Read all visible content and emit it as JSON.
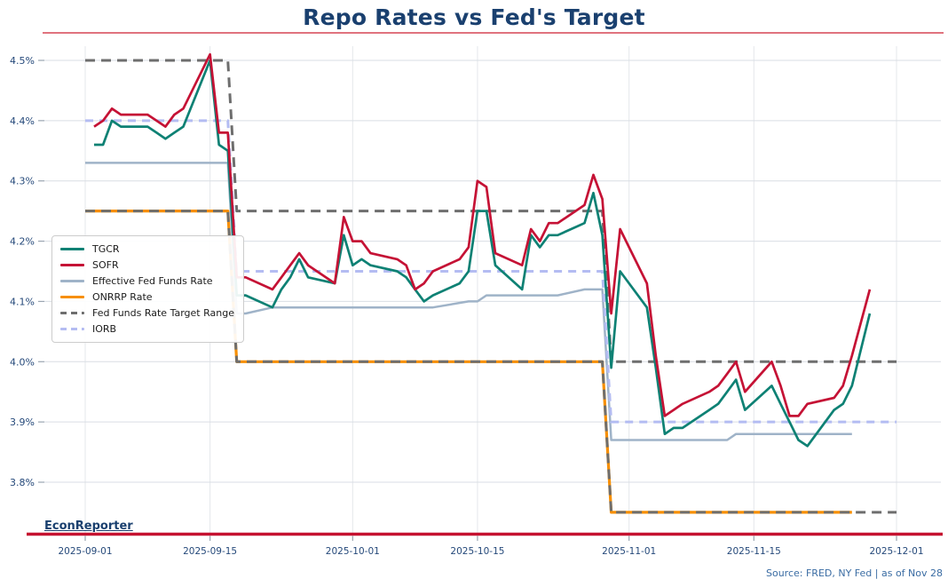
{
  "title": "Repo Rates vs Fed's Target",
  "watermark": "EconReporter",
  "source_note": "Source: FRED, NY Fed | as of Nov 28",
  "colors": {
    "title": "#1a406f",
    "title_rule": "#e0737e",
    "axis_line": "#c51230",
    "tick_label": "#25497a",
    "grid_h": "#d9dee4",
    "grid_v": "#e4e7eb",
    "tick_mark": "#9aa5b1",
    "tgcr": "#0e8174",
    "sofr": "#c51235",
    "effr": "#9fb3c8",
    "onrrp": "#f78f00",
    "target_range": "#6e6e6e",
    "iorb": "#b4bcf2"
  },
  "chart_data": {
    "type": "line",
    "title": "Repo Rates vs Fed's Target",
    "xlabel": "",
    "ylabel": "",
    "grid": true,
    "legend_position": "center-left",
    "x_axis": {
      "ticks": [
        "2025-09-01",
        "2025-09-15",
        "2025-10-01",
        "2025-10-15",
        "2025-11-01",
        "2025-11-15",
        "2025-12-01"
      ],
      "range": [
        "2025-08-27",
        "2025-12-06"
      ]
    },
    "y_axis": {
      "ticks": [
        {
          "value": 4.5,
          "label": "4.5%"
        },
        {
          "value": 4.4,
          "label": "4.4%"
        },
        {
          "value": 4.3,
          "label": "4.3%"
        },
        {
          "value": 4.2,
          "label": "4.2%"
        },
        {
          "value": 4.1,
          "label": "4.1%"
        },
        {
          "value": 4.0,
          "label": "4.0%"
        },
        {
          "value": 3.9,
          "label": "3.9%"
        },
        {
          "value": 3.8,
          "label": "3.8%"
        }
      ],
      "range": [
        3.71,
        4.53
      ]
    },
    "legend": [
      {
        "label": "TGCR",
        "color": "#0e8174",
        "dash": false
      },
      {
        "label": "SOFR",
        "color": "#c51235",
        "dash": false
      },
      {
        "label": "Effective Fed Funds Rate",
        "color": "#9fb3c8",
        "dash": false
      },
      {
        "label": "ONRRP Rate",
        "color": "#f78f00",
        "dash": false
      },
      {
        "label": "Fed Funds Rate Target Range",
        "color": "#6e6e6e",
        "dash": true
      },
      {
        "label": "IORB",
        "color": "#b4bcf2",
        "dash": true
      }
    ],
    "series": [
      {
        "name": "Effective Fed Funds Rate",
        "color": "#9fb3c8",
        "width": 2.5,
        "dash": null,
        "points": [
          [
            "2025-09-01",
            4.33
          ],
          [
            "2025-09-17",
            4.33
          ],
          [
            "2025-09-18",
            4.08
          ],
          [
            "2025-09-19",
            4.08
          ],
          [
            "2025-09-22",
            4.09
          ],
          [
            "2025-10-10",
            4.09
          ],
          [
            "2025-10-14",
            4.1
          ],
          [
            "2025-10-15",
            4.1
          ],
          [
            "2025-10-16",
            4.11
          ],
          [
            "2025-10-24",
            4.11
          ],
          [
            "2025-10-27",
            4.12
          ],
          [
            "2025-10-29",
            4.12
          ],
          [
            "2025-10-30",
            3.87
          ],
          [
            "2025-11-12",
            3.87
          ],
          [
            "2025-11-13",
            3.88
          ],
          [
            "2025-11-26",
            3.88
          ]
        ]
      },
      {
        "name": "ONRRP Rate",
        "color": "#f78f00",
        "width": 3.2,
        "dash": null,
        "points": [
          [
            "2025-09-01",
            4.25
          ],
          [
            "2025-09-17",
            4.25
          ],
          [
            "2025-09-18",
            4.0
          ],
          [
            "2025-10-29",
            4.0
          ],
          [
            "2025-10-30",
            3.75
          ],
          [
            "2025-11-26",
            3.75
          ]
        ]
      },
      {
        "name": "Fed Funds Target Upper",
        "color": "#6e6e6e",
        "width": 3,
        "dash": "11 7",
        "points": [
          [
            "2025-09-01",
            4.5
          ],
          [
            "2025-09-17",
            4.5
          ],
          [
            "2025-09-18",
            4.25
          ],
          [
            "2025-10-29",
            4.25
          ],
          [
            "2025-10-30",
            4.0
          ],
          [
            "2025-12-01",
            4.0
          ]
        ]
      },
      {
        "name": "Fed Funds Target Lower",
        "color": "#6e6e6e",
        "width": 3,
        "dash": "11 7",
        "points": [
          [
            "2025-09-01",
            4.25
          ],
          [
            "2025-09-17",
            4.25
          ],
          [
            "2025-09-18",
            4.0
          ],
          [
            "2025-10-29",
            4.0
          ],
          [
            "2025-10-30",
            3.75
          ],
          [
            "2025-12-01",
            3.75
          ]
        ]
      },
      {
        "name": "IORB",
        "color": "#b4bcf2",
        "width": 3,
        "dash": "9 7",
        "points": [
          [
            "2025-09-01",
            4.4
          ],
          [
            "2025-09-17",
            4.4
          ],
          [
            "2025-09-18",
            4.15
          ],
          [
            "2025-10-29",
            4.15
          ],
          [
            "2025-10-30",
            3.9
          ],
          [
            "2025-12-01",
            3.9
          ]
        ]
      },
      {
        "name": "TGCR",
        "color": "#0e8174",
        "width": 2.7,
        "dash": null,
        "points": [
          [
            "2025-09-02",
            4.36
          ],
          [
            "2025-09-03",
            4.36
          ],
          [
            "2025-09-04",
            4.4
          ],
          [
            "2025-09-05",
            4.39
          ],
          [
            "2025-09-08",
            4.39
          ],
          [
            "2025-09-09",
            4.38
          ],
          [
            "2025-09-10",
            4.37
          ],
          [
            "2025-09-11",
            4.38
          ],
          [
            "2025-09-12",
            4.39
          ],
          [
            "2025-09-15",
            4.5
          ],
          [
            "2025-09-16",
            4.36
          ],
          [
            "2025-09-17",
            4.35
          ],
          [
            "2025-09-18",
            4.11
          ],
          [
            "2025-09-19",
            4.11
          ],
          [
            "2025-09-22",
            4.09
          ],
          [
            "2025-09-23",
            4.12
          ],
          [
            "2025-09-24",
            4.14
          ],
          [
            "2025-09-25",
            4.17
          ],
          [
            "2025-09-26",
            4.14
          ],
          [
            "2025-09-29",
            4.13
          ],
          [
            "2025-09-30",
            4.21
          ],
          [
            "2025-10-01",
            4.16
          ],
          [
            "2025-10-02",
            4.17
          ],
          [
            "2025-10-03",
            4.16
          ],
          [
            "2025-10-06",
            4.15
          ],
          [
            "2025-10-07",
            4.14
          ],
          [
            "2025-10-08",
            4.12
          ],
          [
            "2025-10-09",
            4.1
          ],
          [
            "2025-10-10",
            4.11
          ],
          [
            "2025-10-13",
            4.13
          ],
          [
            "2025-10-14",
            4.15
          ],
          [
            "2025-10-15",
            4.25
          ],
          [
            "2025-10-16",
            4.25
          ],
          [
            "2025-10-17",
            4.16
          ],
          [
            "2025-10-20",
            4.12
          ],
          [
            "2025-10-21",
            4.21
          ],
          [
            "2025-10-22",
            4.19
          ],
          [
            "2025-10-23",
            4.21
          ],
          [
            "2025-10-24",
            4.21
          ],
          [
            "2025-10-27",
            4.23
          ],
          [
            "2025-10-28",
            4.28
          ],
          [
            "2025-10-29",
            4.21
          ],
          [
            "2025-10-30",
            3.99
          ],
          [
            "2025-10-31",
            4.15
          ],
          [
            "2025-11-03",
            4.09
          ],
          [
            "2025-11-04",
            3.99
          ],
          [
            "2025-11-05",
            3.88
          ],
          [
            "2025-11-06",
            3.89
          ],
          [
            "2025-11-07",
            3.89
          ],
          [
            "2025-11-10",
            3.92
          ],
          [
            "2025-11-11",
            3.93
          ],
          [
            "2025-11-12",
            3.95
          ],
          [
            "2025-11-13",
            3.97
          ],
          [
            "2025-11-14",
            3.92
          ],
          [
            "2025-11-17",
            3.96
          ],
          [
            "2025-11-18",
            3.93
          ],
          [
            "2025-11-19",
            3.9
          ],
          [
            "2025-11-20",
            3.87
          ],
          [
            "2025-11-21",
            3.86
          ],
          [
            "2025-11-24",
            3.92
          ],
          [
            "2025-11-25",
            3.93
          ],
          [
            "2025-11-26",
            3.96
          ],
          [
            "2025-11-28",
            4.08
          ]
        ]
      },
      {
        "name": "SOFR",
        "color": "#c51235",
        "width": 2.7,
        "dash": null,
        "points": [
          [
            "2025-09-02",
            4.39
          ],
          [
            "2025-09-03",
            4.4
          ],
          [
            "2025-09-04",
            4.42
          ],
          [
            "2025-09-05",
            4.41
          ],
          [
            "2025-09-08",
            4.41
          ],
          [
            "2025-09-09",
            4.4
          ],
          [
            "2025-09-10",
            4.39
          ],
          [
            "2025-09-11",
            4.41
          ],
          [
            "2025-09-12",
            4.42
          ],
          [
            "2025-09-15",
            4.51
          ],
          [
            "2025-09-16",
            4.38
          ],
          [
            "2025-09-17",
            4.38
          ],
          [
            "2025-09-18",
            4.14
          ],
          [
            "2025-09-19",
            4.14
          ],
          [
            "2025-09-22",
            4.12
          ],
          [
            "2025-09-23",
            4.14
          ],
          [
            "2025-09-24",
            4.16
          ],
          [
            "2025-09-25",
            4.18
          ],
          [
            "2025-09-26",
            4.16
          ],
          [
            "2025-09-29",
            4.13
          ],
          [
            "2025-09-30",
            4.24
          ],
          [
            "2025-10-01",
            4.2
          ],
          [
            "2025-10-02",
            4.2
          ],
          [
            "2025-10-03",
            4.18
          ],
          [
            "2025-10-06",
            4.17
          ],
          [
            "2025-10-07",
            4.16
          ],
          [
            "2025-10-08",
            4.12
          ],
          [
            "2025-10-09",
            4.13
          ],
          [
            "2025-10-10",
            4.15
          ],
          [
            "2025-10-13",
            4.17
          ],
          [
            "2025-10-14",
            4.19
          ],
          [
            "2025-10-15",
            4.3
          ],
          [
            "2025-10-16",
            4.29
          ],
          [
            "2025-10-17",
            4.18
          ],
          [
            "2025-10-20",
            4.16
          ],
          [
            "2025-10-21",
            4.22
          ],
          [
            "2025-10-22",
            4.2
          ],
          [
            "2025-10-23",
            4.23
          ],
          [
            "2025-10-24",
            4.23
          ],
          [
            "2025-10-27",
            4.26
          ],
          [
            "2025-10-28",
            4.31
          ],
          [
            "2025-10-29",
            4.27
          ],
          [
            "2025-10-30",
            4.08
          ],
          [
            "2025-10-31",
            4.22
          ],
          [
            "2025-11-03",
            4.13
          ],
          [
            "2025-11-04",
            4.01
          ],
          [
            "2025-11-05",
            3.91
          ],
          [
            "2025-11-06",
            3.92
          ],
          [
            "2025-11-07",
            3.93
          ],
          [
            "2025-11-10",
            3.95
          ],
          [
            "2025-11-11",
            3.96
          ],
          [
            "2025-11-12",
            3.98
          ],
          [
            "2025-11-13",
            4.0
          ],
          [
            "2025-11-14",
            3.95
          ],
          [
            "2025-11-17",
            4.0
          ],
          [
            "2025-11-18",
            3.96
          ],
          [
            "2025-11-19",
            3.91
          ],
          [
            "2025-11-20",
            3.91
          ],
          [
            "2025-11-21",
            3.93
          ],
          [
            "2025-11-24",
            3.94
          ],
          [
            "2025-11-25",
            3.96
          ],
          [
            "2025-11-26",
            4.01
          ],
          [
            "2025-11-28",
            4.12
          ]
        ]
      }
    ]
  }
}
